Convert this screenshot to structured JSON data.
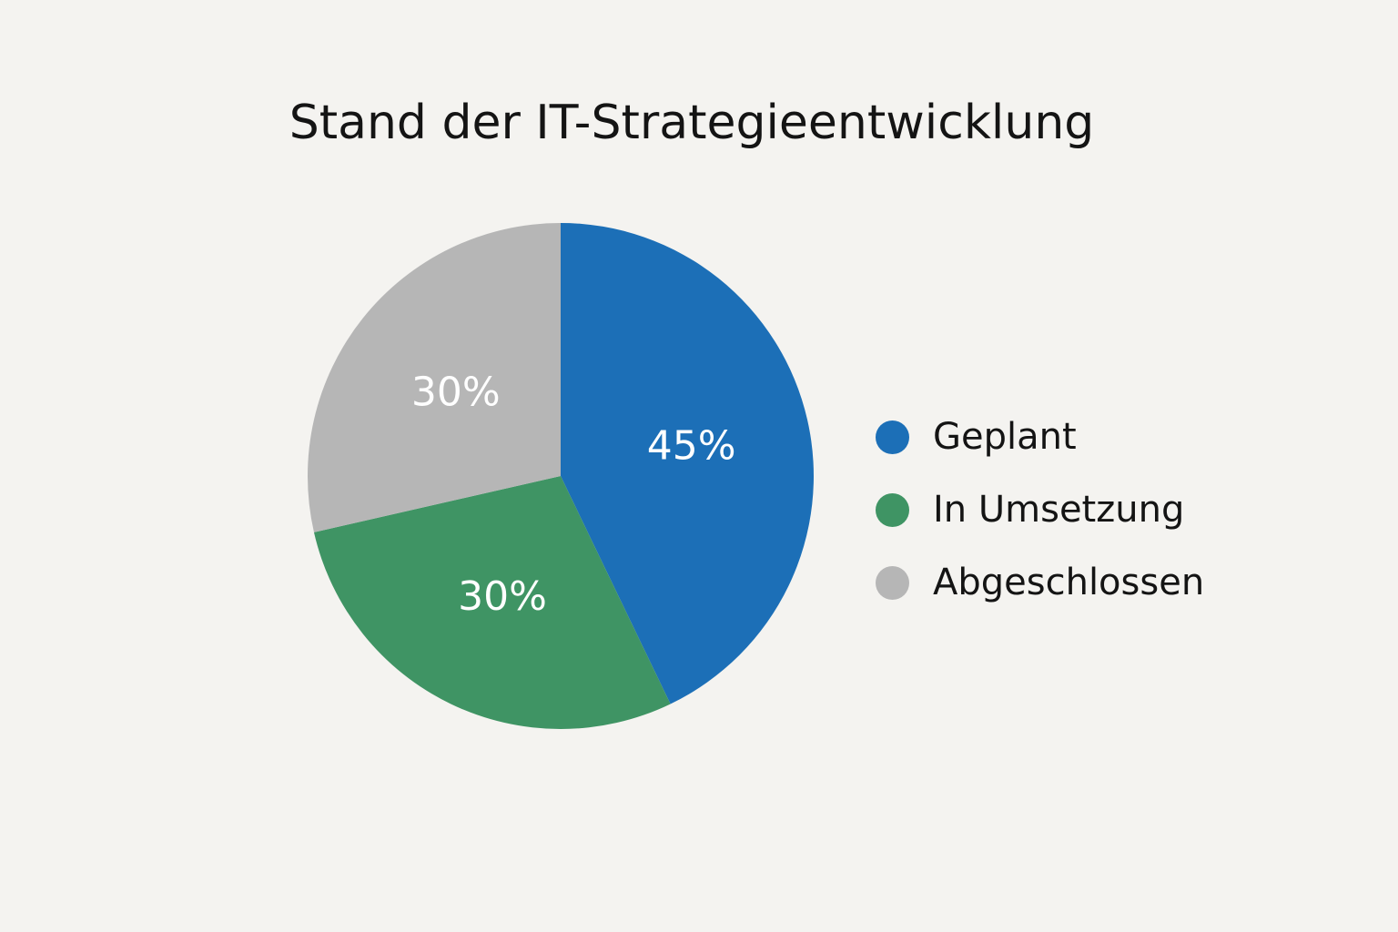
{
  "chart_data": {
    "type": "pie",
    "title": "Stand der IT-Strategieentwicklung",
    "categories": [
      "Geplant",
      "In Umsetzung",
      "Abgeschlossen"
    ],
    "values": [
      45,
      30,
      30
    ],
    "value_labels": [
      "45%",
      "30%",
      "30%"
    ],
    "colors": [
      "#1c6fb7",
      "#3f9464",
      "#b6b6b6"
    ],
    "legend": {
      "placement": "right",
      "entries": [
        "Geplant",
        "In Umsetzung",
        "Abgeschlossen"
      ]
    }
  }
}
